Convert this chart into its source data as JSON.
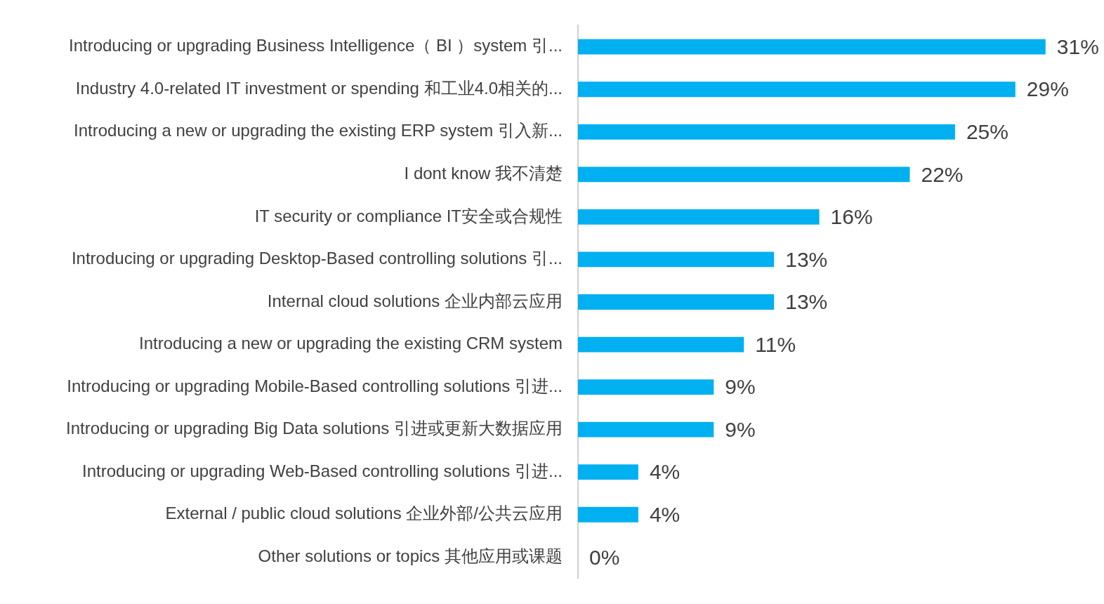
{
  "chart_data": {
    "type": "bar",
    "orientation": "horizontal",
    "categories": [
      "Introducing or upgrading Business Intelligence（ BI ）system 引...",
      "Industry 4.0-related IT investment or spending 和工业4.0相关的...",
      "Introducing a new or upgrading the existing ERP system 引入新...",
      "I dont know 我不清楚",
      "IT security or compliance IT安全或合规性",
      "Introducing or upgrading Desktop-Based controlling solutions 引...",
      "Internal cloud solutions 企业内部云应用",
      "Introducing a new or upgrading the existing CRM system",
      "Introducing or upgrading Mobile-Based controlling solutions 引进...",
      "Introducing or upgrading Big Data solutions 引进或更新大数据应用",
      "Introducing or upgrading Web-Based controlling solutions 引进...",
      "External / public cloud solutions 企业外部/公共云应用",
      "Other solutions or topics 其他应用或课题"
    ],
    "values": [
      31,
      29,
      25,
      22,
      16,
      13,
      13,
      11,
      9,
      9,
      4,
      4,
      0
    ],
    "value_labels": [
      "31%",
      "29%",
      "25%",
      "22%",
      "16%",
      "13%",
      "13%",
      "11%",
      "9%",
      "9%",
      "4%",
      "4%",
      "0%"
    ],
    "color": "#00b0f0",
    "grid": false,
    "legend": false,
    "tick_labels": "y"
  }
}
